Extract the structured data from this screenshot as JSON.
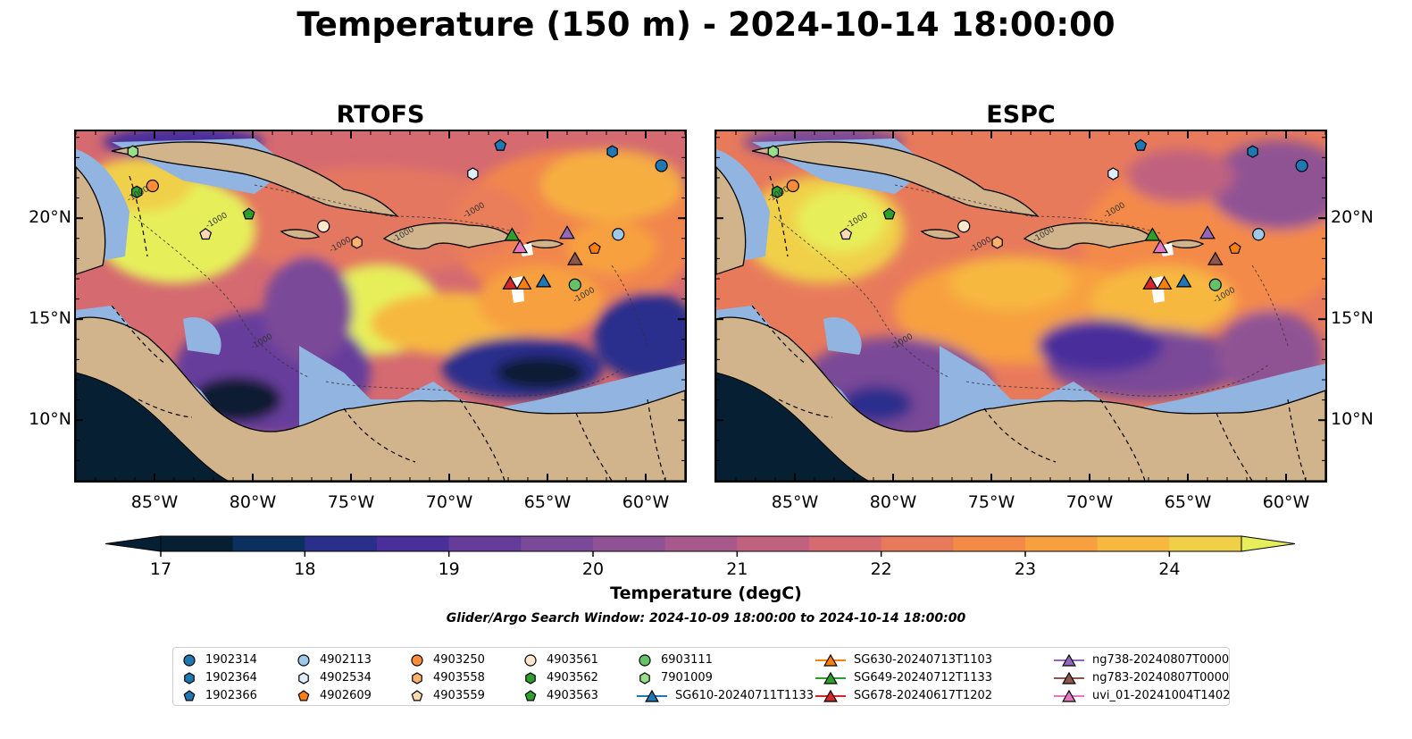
{
  "figure": {
    "title": "Temperature (150 m) - 2024-10-14 18:00:00",
    "search_window": "Glider/Argo Search Window: 2024-10-09 18:00:00 to 2024-10-14 18:00:00"
  },
  "maps": [
    {
      "id": "rtofs",
      "title": "RTOFS"
    },
    {
      "id": "espc",
      "title": "ESPC"
    }
  ],
  "axes": {
    "lon_ticks": [
      "85°W",
      "80°W",
      "75°W",
      "70°W",
      "65°W",
      "60°W"
    ],
    "lat_ticks": [
      "20°N",
      "15°N",
      "10°N"
    ],
    "lon_values": [
      -85,
      -80,
      -75,
      -70,
      -65,
      -60
    ],
    "lat_values": [
      20,
      15,
      10
    ],
    "lon_range": [
      -89,
      -58
    ],
    "lat_range": [
      7,
      24.3
    ]
  },
  "colorbar": {
    "label": "Temperature (degC)",
    "ticks": [
      "17",
      "18",
      "19",
      "20",
      "21",
      "22",
      "23",
      "24"
    ],
    "range": [
      17,
      24.5
    ],
    "extend": "both"
  },
  "contour_label": "-1000",
  "colors": {
    "land": "#d2b48c",
    "shelf": "#92b4e0",
    "cmap": [
      "#071f33",
      "#0b2f5e",
      "#2b2f8c",
      "#4a2f9b",
      "#663c9b",
      "#7a4a98",
      "#8f5294",
      "#a8598c",
      "#c0627f",
      "#d56a70",
      "#e87a5c",
      "#f48a48",
      "#f7a040",
      "#f7b840",
      "#f0d048",
      "#e6ef5a"
    ]
  },
  "markers": [
    {
      "id": "1902314",
      "shape": "circle",
      "color": "#1f77b4",
      "lon": -59.2,
      "lat": 22.6
    },
    {
      "id": "1902364",
      "shape": "hexagon",
      "color": "#1f77b4",
      "lon": -61.7,
      "lat": 23.3
    },
    {
      "id": "1902366",
      "shape": "pentagon",
      "color": "#1f77b4",
      "lon": -67.4,
      "lat": 23.6
    },
    {
      "id": "4902113",
      "shape": "circle",
      "color": "#9ec9e8",
      "lon": -61.4,
      "lat": 19.2
    },
    {
      "id": "4902534",
      "shape": "hexagon",
      "color": "#ddeefa",
      "lon": -68.8,
      "lat": 22.2
    },
    {
      "id": "4902609",
      "shape": "pentagon",
      "color": "#ff7f0e",
      "lon": -62.6,
      "lat": 18.5
    },
    {
      "id": "4903250",
      "shape": "circle",
      "color": "#ff8c3a",
      "lon": -85.1,
      "lat": 21.6
    },
    {
      "id": "4903558",
      "shape": "hexagon",
      "color": "#ffb26e",
      "lon": -74.7,
      "lat": 18.8
    },
    {
      "id": "4903559",
      "shape": "pentagon",
      "color": "#ffd9b0",
      "lon": -82.4,
      "lat": 19.2
    },
    {
      "id": "4903561",
      "shape": "circle",
      "color": "#ffe8cc",
      "lon": -76.4,
      "lat": 19.6
    },
    {
      "id": "4903562",
      "shape": "hexagon",
      "color": "#2ca02c",
      "lon": -85.9,
      "lat": 21.3
    },
    {
      "id": "4903563",
      "shape": "pentagon",
      "color": "#2ca02c",
      "lon": -80.2,
      "lat": 20.2
    },
    {
      "id": "6903111",
      "shape": "circle",
      "color": "#66c266",
      "lon": -63.6,
      "lat": 16.7
    },
    {
      "id": "7901009",
      "shape": "hexagon",
      "color": "#98df8a",
      "lon": -86.1,
      "lat": 23.3
    },
    {
      "id": "SG610-20240711T1133",
      "shape": "triangle",
      "color": "#1f77b4",
      "lon": -65.2,
      "lat": 16.9,
      "line": true
    },
    {
      "id": "SG630-20240713T1103",
      "shape": "triangle",
      "color": "#ff7f0e",
      "lon": -66.2,
      "lat": 16.8,
      "line": true
    },
    {
      "id": "SG649-20240712T1133",
      "shape": "triangle",
      "color": "#2ca02c",
      "lon": -66.8,
      "lat": 19.2,
      "line": true
    },
    {
      "id": "SG678-20240617T1202",
      "shape": "triangle",
      "color": "#d62728",
      "lon": -66.9,
      "lat": 16.8,
      "line": true
    },
    {
      "id": "ng738-20240807T0000",
      "shape": "triangle",
      "color": "#9467bd",
      "lon": -64.0,
      "lat": 19.3,
      "line": true
    },
    {
      "id": "ng783-20240807T0000",
      "shape": "triangle",
      "color": "#8c564b",
      "lon": -63.6,
      "lat": 18.0,
      "line": true
    },
    {
      "id": "uvi_01-20241004T1402",
      "shape": "triangle",
      "color": "#e377c2",
      "lon": -66.4,
      "lat": 18.6,
      "line": true
    }
  ]
}
